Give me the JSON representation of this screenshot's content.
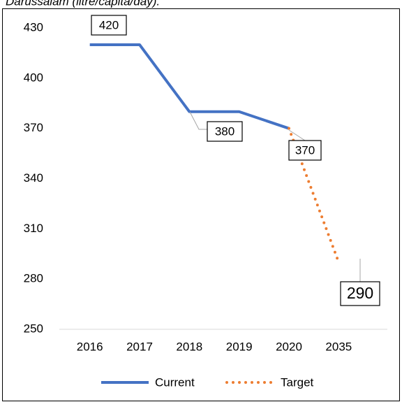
{
  "chart_data": {
    "type": "line",
    "title": "Darussalam (litre/capita/day).",
    "categories": [
      "2016",
      "2017",
      "2018",
      "2019",
      "2020",
      "2035"
    ],
    "series": [
      {
        "name": "Current",
        "color": "#4472c4",
        "style": "solid",
        "values": [
          420,
          420,
          380,
          380,
          370,
          null
        ]
      },
      {
        "name": "Target",
        "color": "#ed7d31",
        "style": "dotted",
        "values": [
          null,
          null,
          null,
          null,
          370,
          290
        ]
      }
    ],
    "ylim": [
      250,
      430
    ],
    "yticks": [
      250,
      280,
      310,
      340,
      370,
      400,
      430
    ],
    "grid": false,
    "legend": "bottom"
  }
}
